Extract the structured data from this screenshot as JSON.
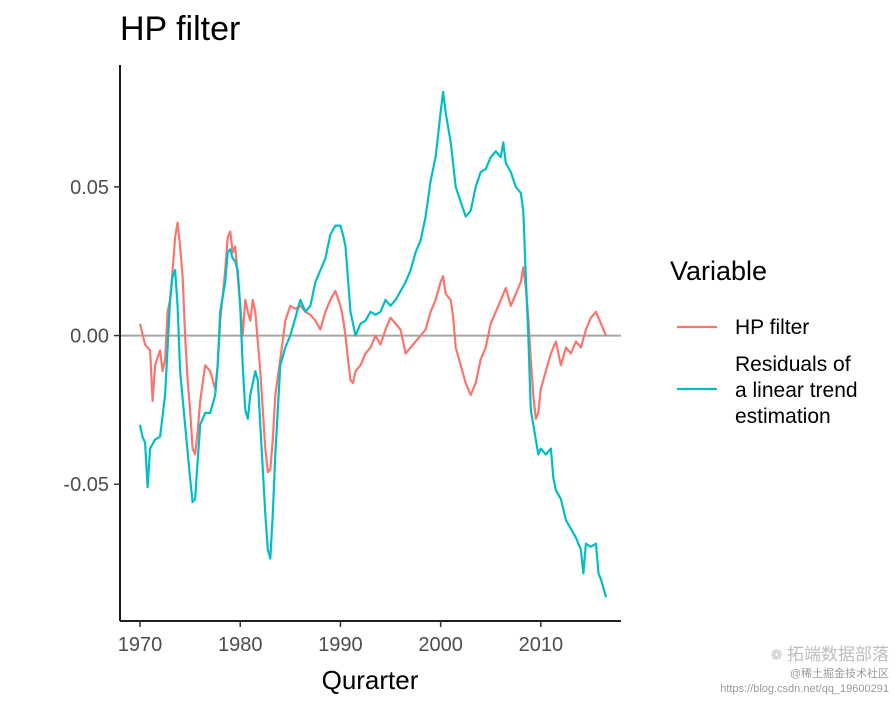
{
  "chart_data": {
    "type": "line",
    "title": "HP filter",
    "xlabel": "Qurarter",
    "ylabel": "",
    "xlim": [
      1968.0,
      2018.0
    ],
    "ylim": [
      -0.096,
      0.091
    ],
    "x_ticks": [
      1970,
      1980,
      1990,
      2000,
      2010
    ],
    "x_tick_labels": [
      "1970",
      "1980",
      "1990",
      "2000",
      "2010"
    ],
    "y_ticks": [
      -0.05,
      0.0,
      0.05
    ],
    "y_tick_labels": [
      "-0.05",
      "0.00",
      "0.05"
    ],
    "reference_line": {
      "y": 0.0,
      "color": "#a6a6a6"
    },
    "legend": {
      "title": "Variable",
      "position": "right"
    },
    "grid": false,
    "series": [
      {
        "name": "HP filter",
        "color": "#F8766D",
        "points": [
          [
            1970.0,
            0.004
          ],
          [
            1970.5,
            -0.003
          ],
          [
            1971.0,
            -0.005
          ],
          [
            1971.25,
            -0.022
          ],
          [
            1971.5,
            -0.01
          ],
          [
            1972.0,
            -0.005
          ],
          [
            1972.25,
            -0.012
          ],
          [
            1972.5,
            -0.008
          ],
          [
            1972.75,
            0.008
          ],
          [
            1973.0,
            0.012
          ],
          [
            1973.25,
            0.022
          ],
          [
            1973.5,
            0.033
          ],
          [
            1973.75,
            0.038
          ],
          [
            1974.0,
            0.03
          ],
          [
            1974.25,
            0.02
          ],
          [
            1974.5,
            0.0
          ],
          [
            1974.75,
            -0.015
          ],
          [
            1975.0,
            -0.025
          ],
          [
            1975.25,
            -0.038
          ],
          [
            1975.5,
            -0.04
          ],
          [
            1975.75,
            -0.032
          ],
          [
            1976.0,
            -0.022
          ],
          [
            1976.5,
            -0.01
          ],
          [
            1977.0,
            -0.012
          ],
          [
            1977.5,
            -0.018
          ],
          [
            1977.75,
            -0.01
          ],
          [
            1978.0,
            0.005
          ],
          [
            1978.5,
            0.022
          ],
          [
            1978.75,
            0.033
          ],
          [
            1979.0,
            0.035
          ],
          [
            1979.25,
            0.028
          ],
          [
            1979.5,
            0.03
          ],
          [
            1979.75,
            0.02
          ],
          [
            1980.0,
            0.01
          ],
          [
            1980.25,
            0.0
          ],
          [
            1980.5,
            0.012
          ],
          [
            1980.75,
            0.008
          ],
          [
            1981.0,
            0.005
          ],
          [
            1981.25,
            0.012
          ],
          [
            1981.5,
            0.008
          ],
          [
            1981.75,
            -0.002
          ],
          [
            1982.0,
            -0.012
          ],
          [
            1982.25,
            -0.025
          ],
          [
            1982.5,
            -0.038
          ],
          [
            1982.75,
            -0.046
          ],
          [
            1983.0,
            -0.045
          ],
          [
            1983.25,
            -0.035
          ],
          [
            1983.5,
            -0.02
          ],
          [
            1984.0,
            -0.008
          ],
          [
            1984.5,
            0.005
          ],
          [
            1985.0,
            0.01
          ],
          [
            1985.5,
            0.009
          ],
          [
            1986.0,
            0.01
          ],
          [
            1986.5,
            0.008
          ],
          [
            1987.0,
            0.007
          ],
          [
            1987.5,
            0.005
          ],
          [
            1988.0,
            0.002
          ],
          [
            1988.5,
            0.008
          ],
          [
            1989.0,
            0.012
          ],
          [
            1989.5,
            0.015
          ],
          [
            1990.0,
            0.01
          ],
          [
            1990.25,
            0.006
          ],
          [
            1990.5,
            0.0
          ],
          [
            1990.75,
            -0.008
          ],
          [
            1991.0,
            -0.015
          ],
          [
            1991.25,
            -0.016
          ],
          [
            1991.5,
            -0.012
          ],
          [
            1992.0,
            -0.01
          ],
          [
            1992.5,
            -0.006
          ],
          [
            1993.0,
            -0.004
          ],
          [
            1993.5,
            0.0
          ],
          [
            1994.0,
            -0.003
          ],
          [
            1994.5,
            0.002
          ],
          [
            1995.0,
            0.006
          ],
          [
            1995.5,
            0.004
          ],
          [
            1996.0,
            0.002
          ],
          [
            1996.5,
            -0.006
          ],
          [
            1997.0,
            -0.004
          ],
          [
            1997.5,
            -0.002
          ],
          [
            1998.0,
            0.0
          ],
          [
            1998.5,
            0.002
          ],
          [
            1999.0,
            0.008
          ],
          [
            1999.5,
            0.012
          ],
          [
            2000.0,
            0.018
          ],
          [
            2000.25,
            0.02
          ],
          [
            2000.5,
            0.014
          ],
          [
            2001.0,
            0.012
          ],
          [
            2001.25,
            0.006
          ],
          [
            2001.5,
            -0.004
          ],
          [
            2002.0,
            -0.01
          ],
          [
            2002.5,
            -0.016
          ],
          [
            2003.0,
            -0.02
          ],
          [
            2003.5,
            -0.016
          ],
          [
            2004.0,
            -0.008
          ],
          [
            2004.5,
            -0.004
          ],
          [
            2005.0,
            0.004
          ],
          [
            2005.5,
            0.008
          ],
          [
            2006.0,
            0.012
          ],
          [
            2006.5,
            0.016
          ],
          [
            2007.0,
            0.01
          ],
          [
            2007.5,
            0.014
          ],
          [
            2008.0,
            0.018
          ],
          [
            2008.25,
            0.023
          ],
          [
            2008.5,
            0.016
          ],
          [
            2008.75,
            0.006
          ],
          [
            2009.0,
            -0.008
          ],
          [
            2009.25,
            -0.02
          ],
          [
            2009.5,
            -0.028
          ],
          [
            2009.75,
            -0.026
          ],
          [
            2010.0,
            -0.018
          ],
          [
            2010.5,
            -0.012
          ],
          [
            2011.0,
            -0.006
          ],
          [
            2011.5,
            -0.002
          ],
          [
            2012.0,
            -0.01
          ],
          [
            2012.5,
            -0.004
          ],
          [
            2013.0,
            -0.006
          ],
          [
            2013.5,
            -0.002
          ],
          [
            2014.0,
            -0.004
          ],
          [
            2014.5,
            0.002
          ],
          [
            2015.0,
            0.006
          ],
          [
            2015.5,
            0.008
          ],
          [
            2016.0,
            0.004
          ],
          [
            2016.5,
            0.0
          ]
        ]
      },
      {
        "name": "Residuals of a linear trend estimation",
        "color": "#00BFC4",
        "points": [
          [
            1970.0,
            -0.03
          ],
          [
            1970.25,
            -0.034
          ],
          [
            1970.5,
            -0.036
          ],
          [
            1970.75,
            -0.051
          ],
          [
            1971.0,
            -0.038
          ],
          [
            1971.5,
            -0.035
          ],
          [
            1972.0,
            -0.034
          ],
          [
            1972.5,
            -0.02
          ],
          [
            1973.0,
            0.012
          ],
          [
            1973.25,
            0.02
          ],
          [
            1973.5,
            0.022
          ],
          [
            1973.75,
            0.01
          ],
          [
            1974.0,
            -0.012
          ],
          [
            1974.5,
            -0.03
          ],
          [
            1975.0,
            -0.048
          ],
          [
            1975.25,
            -0.056
          ],
          [
            1975.5,
            -0.055
          ],
          [
            1975.75,
            -0.042
          ],
          [
            1976.0,
            -0.03
          ],
          [
            1976.5,
            -0.026
          ],
          [
            1977.0,
            -0.026
          ],
          [
            1977.5,
            -0.02
          ],
          [
            1977.75,
            -0.01
          ],
          [
            1978.0,
            0.008
          ],
          [
            1978.5,
            0.018
          ],
          [
            1978.75,
            0.028
          ],
          [
            1979.0,
            0.029
          ],
          [
            1979.25,
            0.026
          ],
          [
            1979.5,
            0.025
          ],
          [
            1979.75,
            0.022
          ],
          [
            1980.0,
            0.01
          ],
          [
            1980.25,
            -0.01
          ],
          [
            1980.5,
            -0.025
          ],
          [
            1980.75,
            -0.028
          ],
          [
            1981.0,
            -0.02
          ],
          [
            1981.5,
            -0.012
          ],
          [
            1981.75,
            -0.015
          ],
          [
            1982.0,
            -0.03
          ],
          [
            1982.25,
            -0.045
          ],
          [
            1982.5,
            -0.06
          ],
          [
            1982.75,
            -0.072
          ],
          [
            1983.0,
            -0.075
          ],
          [
            1983.25,
            -0.06
          ],
          [
            1983.5,
            -0.04
          ],
          [
            1983.75,
            -0.025
          ],
          [
            1984.0,
            -0.01
          ],
          [
            1984.5,
            -0.004
          ],
          [
            1985.0,
            0.0
          ],
          [
            1985.5,
            0.006
          ],
          [
            1986.0,
            0.012
          ],
          [
            1986.5,
            0.008
          ],
          [
            1987.0,
            0.01
          ],
          [
            1987.5,
            0.018
          ],
          [
            1988.0,
            0.022
          ],
          [
            1988.5,
            0.026
          ],
          [
            1989.0,
            0.034
          ],
          [
            1989.5,
            0.037
          ],
          [
            1990.0,
            0.037
          ],
          [
            1990.25,
            0.034
          ],
          [
            1990.5,
            0.03
          ],
          [
            1991.0,
            0.008
          ],
          [
            1991.5,
            0.0
          ],
          [
            1992.0,
            0.004
          ],
          [
            1992.5,
            0.005
          ],
          [
            1993.0,
            0.008
          ],
          [
            1993.5,
            0.007
          ],
          [
            1994.0,
            0.008
          ],
          [
            1994.5,
            0.012
          ],
          [
            1995.0,
            0.01
          ],
          [
            1995.5,
            0.012
          ],
          [
            1996.0,
            0.015
          ],
          [
            1996.5,
            0.018
          ],
          [
            1997.0,
            0.022
          ],
          [
            1997.5,
            0.028
          ],
          [
            1998.0,
            0.032
          ],
          [
            1998.5,
            0.04
          ],
          [
            1999.0,
            0.052
          ],
          [
            1999.5,
            0.06
          ],
          [
            2000.0,
            0.075
          ],
          [
            2000.25,
            0.082
          ],
          [
            2000.5,
            0.075
          ],
          [
            2001.0,
            0.065
          ],
          [
            2001.5,
            0.05
          ],
          [
            2002.0,
            0.045
          ],
          [
            2002.5,
            0.04
          ],
          [
            2003.0,
            0.042
          ],
          [
            2003.5,
            0.05
          ],
          [
            2004.0,
            0.055
          ],
          [
            2004.5,
            0.056
          ],
          [
            2005.0,
            0.06
          ],
          [
            2005.5,
            0.062
          ],
          [
            2006.0,
            0.06
          ],
          [
            2006.25,
            0.065
          ],
          [
            2006.5,
            0.058
          ],
          [
            2007.0,
            0.055
          ],
          [
            2007.5,
            0.05
          ],
          [
            2008.0,
            0.048
          ],
          [
            2008.25,
            0.042
          ],
          [
            2008.5,
            0.02
          ],
          [
            2008.75,
            0.0
          ],
          [
            2009.0,
            -0.025
          ],
          [
            2009.5,
            -0.035
          ],
          [
            2009.75,
            -0.04
          ],
          [
            2010.0,
            -0.038
          ],
          [
            2010.5,
            -0.04
          ],
          [
            2011.0,
            -0.038
          ],
          [
            2011.25,
            -0.048
          ],
          [
            2011.5,
            -0.052
          ],
          [
            2012.0,
            -0.055
          ],
          [
            2012.5,
            -0.062
          ],
          [
            2013.0,
            -0.065
          ],
          [
            2013.5,
            -0.068
          ],
          [
            2014.0,
            -0.072
          ],
          [
            2014.25,
            -0.08
          ],
          [
            2014.5,
            -0.07
          ],
          [
            2015.0,
            -0.071
          ],
          [
            2015.5,
            -0.07
          ],
          [
            2015.75,
            -0.08
          ],
          [
            2016.0,
            -0.082
          ],
          [
            2016.5,
            -0.088
          ]
        ]
      }
    ]
  },
  "watermark": {
    "brand": "拓端数据部落",
    "overlay": "@稀土掘金技术社区",
    "url": "https://blog.csdn.net/qq_19600291"
  }
}
